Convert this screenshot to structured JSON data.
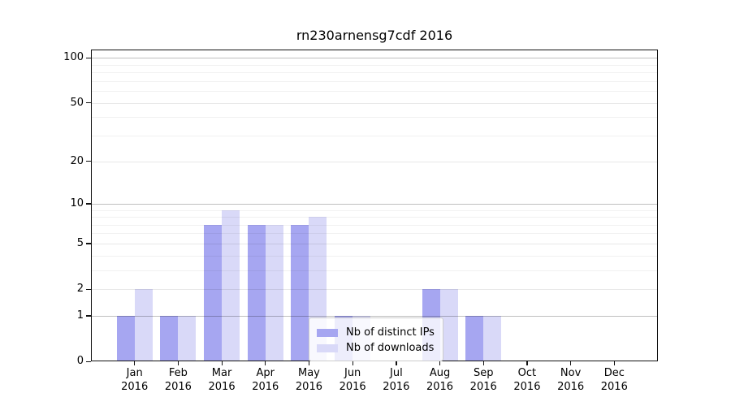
{
  "figure": {
    "title": "rn230arnensg7cdf 2016"
  },
  "chart_data": {
    "type": "bar",
    "title": "rn230arnensg7cdf 2016",
    "categories": [
      "Jan",
      "Feb",
      "Mar",
      "Apr",
      "May",
      "Jun",
      "Jul",
      "Aug",
      "Sep",
      "Oct",
      "Nov",
      "Dec"
    ],
    "year_label": "2016",
    "series": [
      {
        "name": "Nb of distinct IPs",
        "color": "#a6a6f1",
        "values": [
          1,
          1,
          7,
          7,
          7,
          1,
          0,
          2,
          1,
          0,
          0,
          0
        ]
      },
      {
        "name": "Nb of downloads",
        "color": "#d9d9f8",
        "values": [
          2,
          1,
          9,
          7,
          8,
          1,
          0,
          2,
          1,
          0,
          0,
          0
        ]
      }
    ],
    "y_axis": {
      "scale": "log1p",
      "range": [
        0,
        100
      ],
      "ticks": [
        0,
        1,
        2,
        5,
        10,
        20,
        50,
        100
      ],
      "major_ticks": [
        1,
        10,
        100
      ],
      "minor_gridlines": [
        3,
        4,
        6,
        7,
        8,
        9,
        30,
        40,
        60,
        70,
        80,
        90
      ]
    },
    "grid": true,
    "legend": {
      "position": "lower-center",
      "items": [
        "Nb of distinct IPs",
        "Nb of downloads"
      ]
    }
  }
}
